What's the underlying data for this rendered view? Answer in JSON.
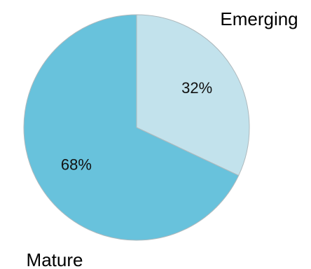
{
  "chart_data": {
    "type": "pie",
    "title": "",
    "categories": [
      "Emerging",
      "Mature"
    ],
    "values": [
      32,
      68
    ],
    "value_labels": [
      "32%",
      "68%"
    ],
    "unit": "%",
    "colors": [
      "#c2e2ec",
      "#68c2dc"
    ],
    "start_angle_deg": 0,
    "direction": "clockwise",
    "legend": "none"
  }
}
